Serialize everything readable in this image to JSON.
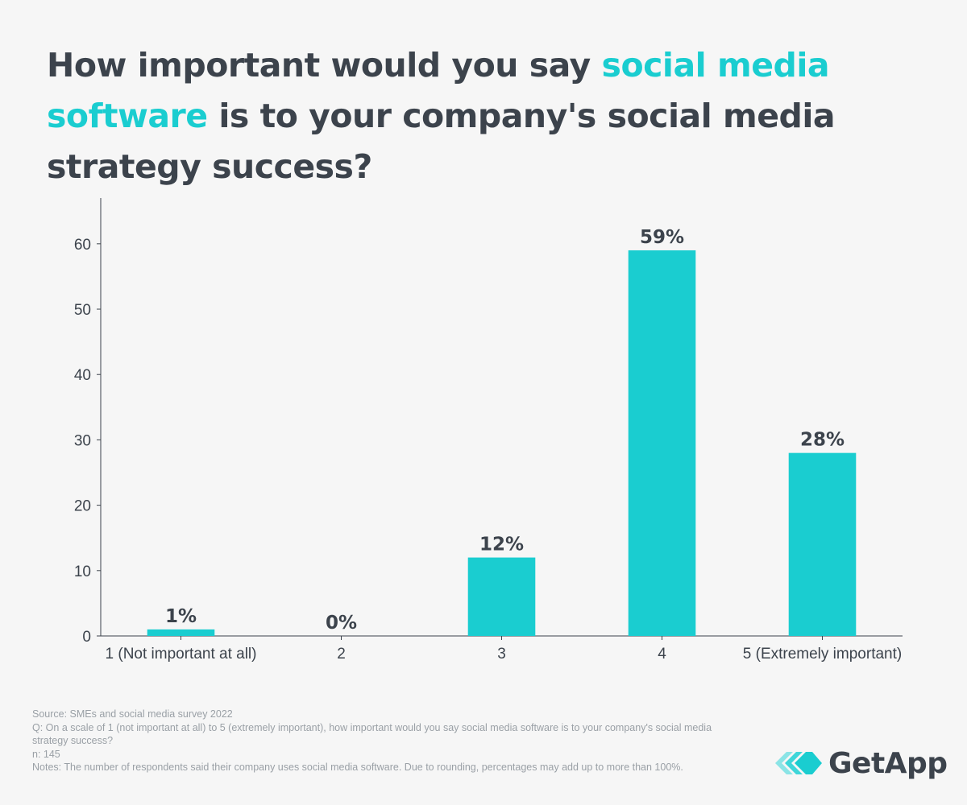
{
  "title": {
    "part1": "How important would you say ",
    "highlight": "social media software",
    "part2": " is to your company's social media strategy success?"
  },
  "colors": {
    "bar": "#1acdd0",
    "text": "#3c434c",
    "highlight": "#1acdd0",
    "muted": "#9aa0a6"
  },
  "chart_data": {
    "type": "bar",
    "title": "How important would you say social media software is to your company's social media strategy success?",
    "categories": [
      "1 (Not important at all)",
      "2",
      "3",
      "4",
      "5 (Extremely important)"
    ],
    "values": [
      1,
      0,
      12,
      59,
      28
    ],
    "data_labels": [
      "1%",
      "0%",
      "12%",
      "59%",
      "28%"
    ],
    "yticks": [
      0,
      10,
      20,
      30,
      40,
      50,
      60
    ],
    "ylim": [
      0,
      67
    ],
    "xlabel": "",
    "ylabel": "",
    "grid": false
  },
  "footnotes": {
    "source": "Source: SMEs and social media survey 2022",
    "question": "Q: On a scale of 1 (not important at all) to 5 (extremely important), how important would you say social media software is to your company's social media strategy success?",
    "n": "n: 145",
    "notes": "Notes: The number of respondents said their company uses social media software. Due to rounding, percentages may add up to more than 100%."
  },
  "logo": {
    "text": "GetApp",
    "icon": "getapp-logo-icon"
  }
}
